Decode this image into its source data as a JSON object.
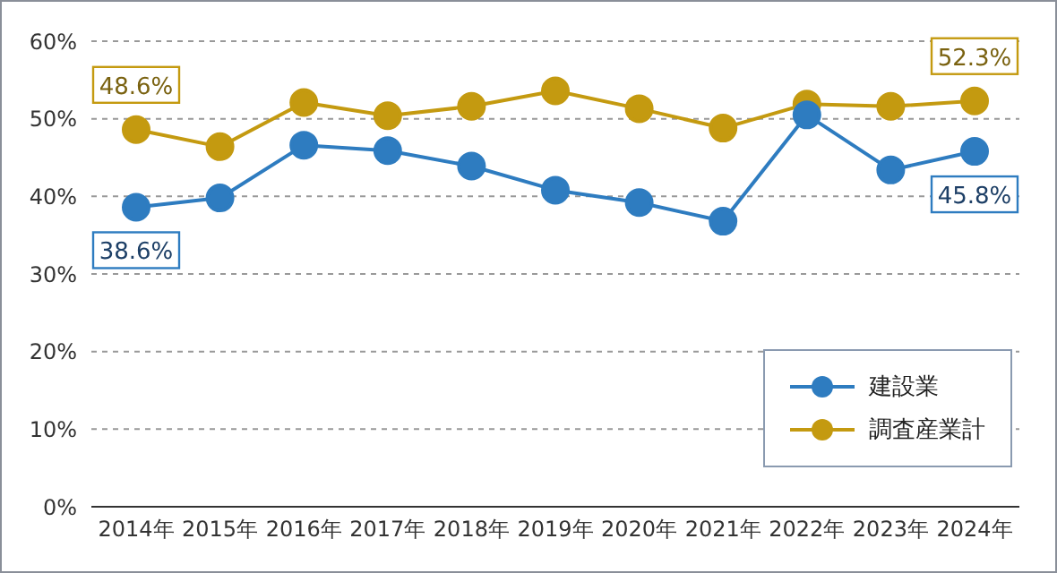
{
  "chart_data": {
    "type": "line",
    "categories": [
      "2014年",
      "2015年",
      "2016年",
      "2017年",
      "2018年",
      "2019年",
      "2020年",
      "2021年",
      "2022年",
      "2023年",
      "2024年"
    ],
    "series": [
      {
        "name": "建設業",
        "color": "#2e7cc0",
        "values": [
          38.6,
          39.8,
          46.6,
          45.9,
          43.9,
          40.8,
          39.2,
          36.8,
          50.5,
          43.4,
          45.8
        ],
        "value_labels": [
          "38.6%",
          null,
          null,
          null,
          null,
          null,
          null,
          null,
          null,
          null,
          "45.8%"
        ]
      },
      {
        "name": "調査産業計",
        "color": "#c49a10",
        "values": [
          48.6,
          46.4,
          52.1,
          50.4,
          51.6,
          53.6,
          51.3,
          48.8,
          51.9,
          51.6,
          52.3
        ],
        "value_labels": [
          "48.6%",
          null,
          null,
          null,
          null,
          null,
          null,
          null,
          null,
          null,
          "52.3%"
        ]
      }
    ],
    "ylim": [
      0,
      60
    ],
    "yticks": [
      {
        "value": 0,
        "label": "0%"
      },
      {
        "value": 10,
        "label": "10%"
      },
      {
        "value": 20,
        "label": "20%"
      },
      {
        "value": 30,
        "label": "30%"
      },
      {
        "value": 40,
        "label": "40%"
      },
      {
        "value": 50,
        "label": "50%"
      },
      {
        "value": 60,
        "label": "60%"
      }
    ],
    "grid": "y",
    "legend": "bottom right",
    "marker": "circle",
    "line_style": "solid"
  }
}
